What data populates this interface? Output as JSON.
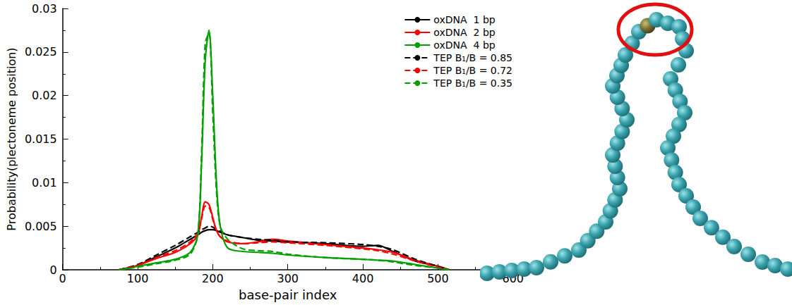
{
  "chart_data": {
    "type": "line",
    "x_label": "base-pair index",
    "y_label": "Probability(plectoneme position)",
    "x": [
      75,
      100,
      125,
      150,
      170,
      180,
      185,
      190,
      195,
      200,
      205,
      210,
      220,
      240,
      260,
      280,
      300,
      350,
      400,
      420,
      440,
      470,
      500,
      515
    ],
    "series": [
      {
        "name": "oxDNA  1 bp",
        "color": "#000000",
        "line_style": "solid",
        "values": [
          0,
          0.0005,
          0.0015,
          0.0025,
          0.0035,
          0.004,
          0.0043,
          0.0045,
          0.0046,
          0.0046,
          0.0045,
          0.0043,
          0.004,
          0.0037,
          0.0034,
          0.0033,
          0.0032,
          0.003,
          0.0027,
          0.0028,
          0.0021,
          0.001,
          0.0004,
          0
        ]
      },
      {
        "name": "oxDNA  2 bp",
        "color": "#ff0000",
        "line_style": "solid",
        "values": [
          0,
          0.0005,
          0.0013,
          0.002,
          0.003,
          0.004,
          0.006,
          0.0078,
          0.0075,
          0.006,
          0.0045,
          0.0038,
          0.0032,
          0.003,
          0.0032,
          0.0035,
          0.0033,
          0.0029,
          0.0025,
          0.0023,
          0.002,
          0.0011,
          0.0004,
          0
        ]
      },
      {
        "name": "oxDNA  4 bp",
        "color": "#00a000",
        "line_style": "solid",
        "values": [
          0,
          0.0004,
          0.0008,
          0.0012,
          0.002,
          0.004,
          0.012,
          0.024,
          0.0275,
          0.02,
          0.01,
          0.005,
          0.0025,
          0.0021,
          0.002,
          0.0019,
          0.0017,
          0.0014,
          0.0012,
          0.0011,
          0.001,
          0.0006,
          0.0002,
          0
        ]
      },
      {
        "name": "TEP B₁/B = 0.85",
        "color": "#000000",
        "line_style": "dashed",
        "values": [
          0,
          0.0006,
          0.0017,
          0.0028,
          0.0038,
          0.0043,
          0.0046,
          0.0048,
          0.005,
          0.0049,
          0.0046,
          0.0044,
          0.004,
          0.0037,
          0.0035,
          0.0034,
          0.0032,
          0.0031,
          0.0029,
          0.0027,
          0.0023,
          0.0012,
          0.0004,
          0
        ]
      },
      {
        "name": "TEP B₁/B = 0.72",
        "color": "#ff0000",
        "line_style": "dashed",
        "values": [
          0,
          0.0005,
          0.0014,
          0.0022,
          0.0032,
          0.0042,
          0.0058,
          0.0073,
          0.0072,
          0.0058,
          0.0045,
          0.0038,
          0.0033,
          0.003,
          0.0031,
          0.0032,
          0.0031,
          0.0028,
          0.0024,
          0.0022,
          0.0018,
          0.001,
          0.0003,
          0
        ]
      },
      {
        "name": "TEP B₁/B = 0.35",
        "color": "#00a000",
        "line_style": "dashed",
        "values": [
          0,
          0.0003,
          0.0007,
          0.0011,
          0.0018,
          0.004,
          0.013,
          0.026,
          0.0272,
          0.018,
          0.009,
          0.005,
          0.0035,
          0.0024,
          0.0022,
          0.0021,
          0.0018,
          0.0014,
          0.0012,
          0.0011,
          0.0009,
          0.0005,
          0.0002,
          0
        ]
      }
    ],
    "xlim": [
      0,
      600
    ],
    "xticks": [
      0,
      100,
      200,
      300,
      400,
      500,
      600
    ],
    "ylim": [
      0,
      0.03
    ],
    "yticks": [
      0,
      0.005,
      0.01,
      0.015,
      0.02,
      0.025,
      0.03
    ],
    "grid": false,
    "legend": "upper right"
  }
}
